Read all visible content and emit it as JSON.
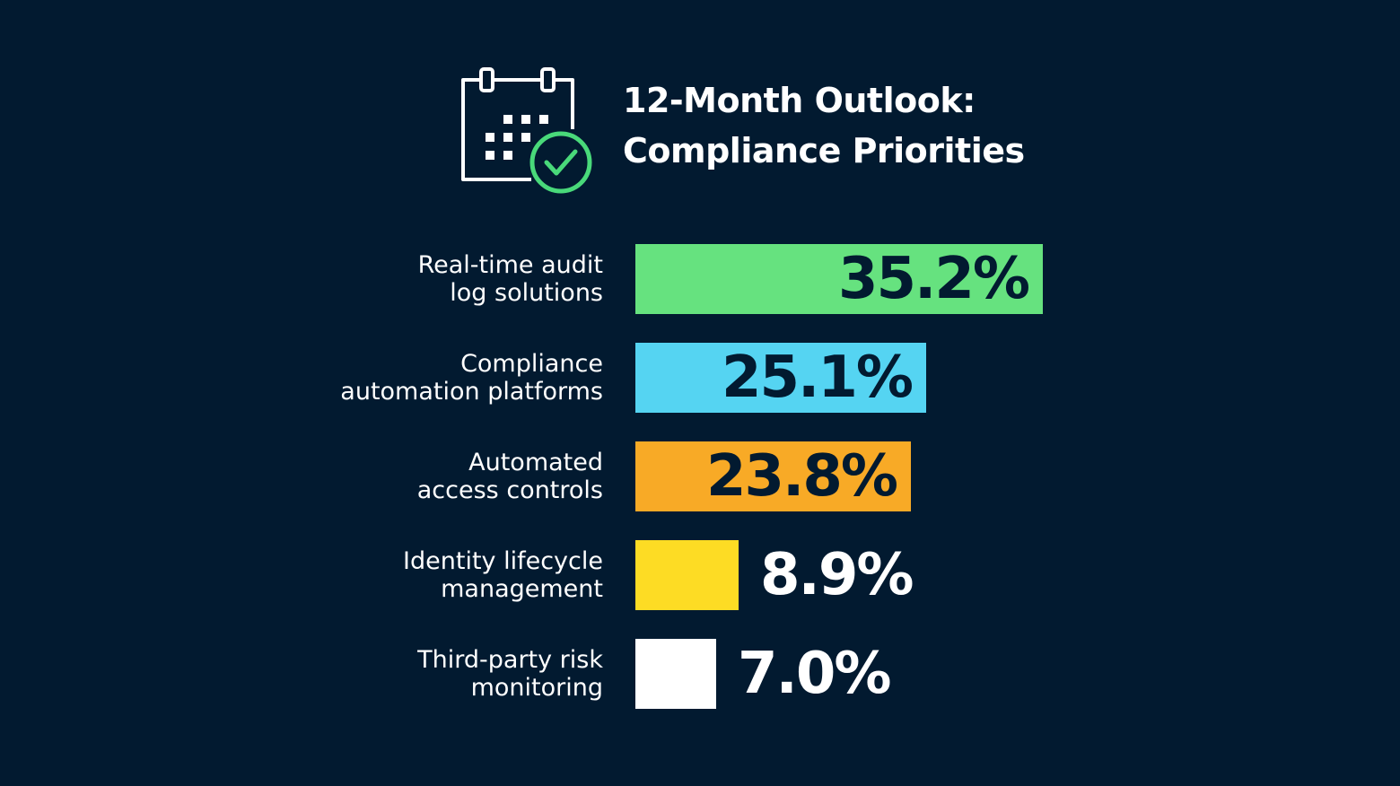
{
  "title": {
    "line1": "12-Month Outlook:",
    "line2": "Compliance Priorities"
  },
  "header_icon": "calendar-check-icon",
  "colors": {
    "background": "#021a30",
    "icon_stroke": "#ffffff",
    "icon_check": "#49d97a",
    "dark_text": "#021a30",
    "light_text": "#ffffff"
  },
  "chart_data": {
    "type": "bar",
    "orientation": "horizontal",
    "categories": [
      [
        "Real-time audit",
        "log solutions"
      ],
      [
        "Compliance",
        "automation platforms"
      ],
      [
        "Automated",
        "access controls"
      ],
      [
        "Identity lifecycle",
        "management"
      ],
      [
        "Third-party risk",
        "monitoring"
      ]
    ],
    "values": [
      35.2,
      25.1,
      23.8,
      8.9,
      7.0
    ],
    "value_labels": [
      "35.2%",
      "25.1%",
      "23.8%",
      "8.9%",
      "7.0%"
    ],
    "bar_colors": [
      "#66e27f",
      "#55d4f2",
      "#f8aa26",
      "#fddc24",
      "#ffffff"
    ],
    "label_inside": [
      true,
      true,
      true,
      false,
      false
    ],
    "unit": "%",
    "grid": false,
    "legend": false
  }
}
